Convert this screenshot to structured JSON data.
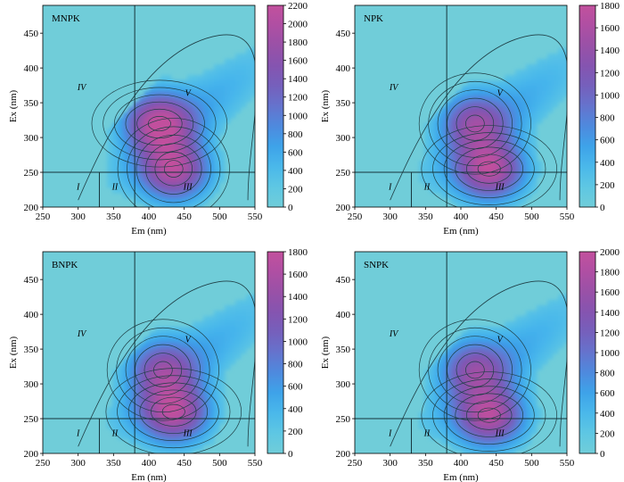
{
  "figure": {
    "background_color": "#70cdd9",
    "line_color": "#1f3f46",
    "colormap": [
      "#70cdd9",
      "#5cc6e4",
      "#45b4ec",
      "#3b9be8",
      "#5a7fd7",
      "#6f67c2",
      "#7f55b3",
      "#9452a8",
      "#ad4fa4",
      "#c2509d"
    ]
  },
  "chart_data": [
    {
      "type": "heatmap",
      "title": "MNPK",
      "xlabel": "Em (nm)",
      "ylabel": "Ex (nm)",
      "xlim": [
        250,
        550
      ],
      "ylim": [
        200,
        490
      ],
      "xticks": [
        "250",
        "300",
        "350",
        "400",
        "450",
        "500",
        "550"
      ],
      "yticks": [
        "200",
        "250",
        "300",
        "350",
        "400",
        "450"
      ],
      "colorbar": {
        "min": 0,
        "max": 2200,
        "ticks": [
          "0",
          "200",
          "400",
          "600",
          "800",
          "1000",
          "1200",
          "1400",
          "1600",
          "1800",
          "2000",
          "2200"
        ]
      },
      "region_labels": [
        "I",
        "II",
        "III",
        "IV",
        "V"
      ],
      "region_lines": {
        "vertical_x": [
          330,
          380
        ],
        "horizontal_y": 250
      },
      "peaks": [
        {
          "em": 415,
          "ex": 320,
          "intensity": 2100
        },
        {
          "em": 435,
          "ex": 255,
          "intensity": 2000
        }
      ]
    },
    {
      "type": "heatmap",
      "title": "NPK",
      "xlabel": "Em (nm)",
      "ylabel": "Ex (nm)",
      "xlim": [
        250,
        550
      ],
      "ylim": [
        200,
        490
      ],
      "xticks": [
        "250",
        "300",
        "350",
        "400",
        "450",
        "500",
        "550"
      ],
      "yticks": [
        "200",
        "250",
        "300",
        "350",
        "400",
        "450"
      ],
      "colorbar": {
        "min": 0,
        "max": 1800,
        "ticks": [
          "0",
          "200",
          "400",
          "600",
          "800",
          "1000",
          "1200",
          "1400",
          "1600",
          "1800"
        ]
      },
      "region_labels": [
        "I",
        "II",
        "III",
        "IV",
        "V"
      ],
      "region_lines": {
        "vertical_x": [
          330,
          380
        ],
        "horizontal_y": 250
      },
      "peaks": [
        {
          "em": 440,
          "ex": 255,
          "intensity": 1700
        },
        {
          "em": 420,
          "ex": 320,
          "intensity": 1150
        }
      ]
    },
    {
      "type": "heatmap",
      "title": "BNPK",
      "xlabel": "Em (nm)",
      "ylabel": "Ex (nm)",
      "xlim": [
        250,
        550
      ],
      "ylim": [
        200,
        490
      ],
      "xticks": [
        "250",
        "300",
        "350",
        "400",
        "450",
        "500",
        "550"
      ],
      "yticks": [
        "200",
        "250",
        "300",
        "350",
        "400",
        "450"
      ],
      "colorbar": {
        "min": 0,
        "max": 1800,
        "ticks": [
          "0",
          "200",
          "400",
          "600",
          "800",
          "1000",
          "1200",
          "1400",
          "1600",
          "1800"
        ]
      },
      "region_labels": [
        "I",
        "II",
        "III",
        "IV",
        "V"
      ],
      "region_lines": {
        "vertical_x": [
          330,
          380
        ],
        "horizontal_y": 250
      },
      "peaks": [
        {
          "em": 435,
          "ex": 260,
          "intensity": 1650
        },
        {
          "em": 420,
          "ex": 320,
          "intensity": 1100
        }
      ]
    },
    {
      "type": "heatmap",
      "title": "SNPK",
      "xlabel": "Em (nm)",
      "ylabel": "Ex (nm)",
      "xlim": [
        250,
        550
      ],
      "ylim": [
        200,
        490
      ],
      "xticks": [
        "250",
        "300",
        "350",
        "400",
        "450",
        "500",
        "550"
      ],
      "yticks": [
        "200",
        "250",
        "300",
        "350",
        "400",
        "450"
      ],
      "colorbar": {
        "min": 0,
        "max": 2000,
        "ticks": [
          "0",
          "200",
          "400",
          "600",
          "800",
          "1000",
          "1200",
          "1400",
          "1600",
          "1800",
          "2000"
        ]
      },
      "region_labels": [
        "I",
        "II",
        "III",
        "IV",
        "V"
      ],
      "region_lines": {
        "vertical_x": [
          330,
          380
        ],
        "horizontal_y": 250
      },
      "peaks": [
        {
          "em": 440,
          "ex": 255,
          "intensity": 1800
        },
        {
          "em": 420,
          "ex": 320,
          "intensity": 1200
        }
      ]
    }
  ]
}
